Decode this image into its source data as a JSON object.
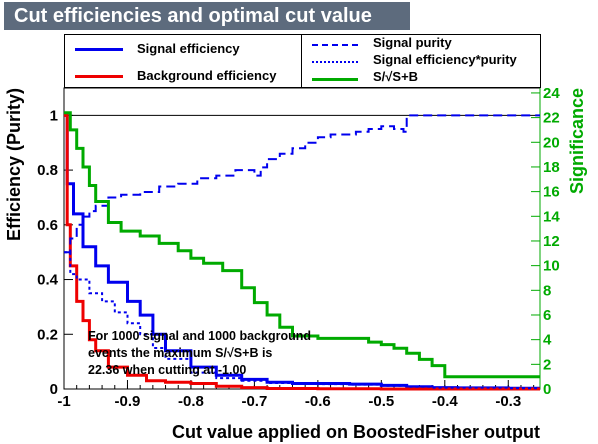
{
  "title": "Cut efficiencies and optimal cut value",
  "legend": {
    "left": [
      {
        "label": "Signal efficiency",
        "color": "#0000ee",
        "style": "solid"
      },
      {
        "label": "Background efficiency",
        "color": "#ee0000",
        "style": "solid"
      }
    ],
    "right": [
      {
        "label": "Signal purity",
        "color": "#0000ee",
        "style": "dashed"
      },
      {
        "label": "Signal efficiency*purity",
        "color": "#0000ee",
        "style": "dotted"
      },
      {
        "label": "S/√S+B",
        "color": "#00aa00",
        "style": "solid"
      }
    ]
  },
  "annotation": {
    "line1": "For 1000 signal and 1000 background",
    "line2": "events the maximum S/√S+B is",
    "line3": "22.36 when cutting at -1.00"
  },
  "chart_data": {
    "type": "line",
    "xlabel": "Cut value applied on BoostedFisher output",
    "ylabel": "Efficiency (Purity)",
    "y2label": "Significance",
    "xlim": [
      -1.0,
      -0.25
    ],
    "ylim": [
      0,
      1.1
    ],
    "y2lim": [
      0,
      24.4
    ],
    "xticks": [
      "-1",
      "-0.9",
      "-0.8",
      "-0.7",
      "-0.6",
      "-0.5",
      "-0.4",
      "-0.3"
    ],
    "xtick_values": [
      -1.0,
      -0.9,
      -0.8,
      -0.7,
      -0.6,
      -0.5,
      -0.4,
      -0.3
    ],
    "yticks": [
      "0",
      "0.2",
      "0.4",
      "0.6",
      "0.8",
      "1"
    ],
    "ytick_values": [
      0,
      0.2,
      0.4,
      0.6,
      0.8,
      1.0
    ],
    "y2ticks": [
      "0",
      "2",
      "4",
      "6",
      "8",
      "10",
      "12",
      "14",
      "16",
      "18",
      "20",
      "22",
      "24"
    ],
    "y2tick_values": [
      0,
      2,
      4,
      6,
      8,
      10,
      12,
      14,
      16,
      18,
      20,
      22,
      24
    ],
    "reference_line_y": 1.0,
    "series": [
      {
        "name": "Signal efficiency",
        "color": "#0000ee",
        "style": "solid",
        "axis": "left",
        "x": [
          -1.0,
          -0.995,
          -0.985,
          -0.97,
          -0.95,
          -0.93,
          -0.9,
          -0.88,
          -0.86,
          -0.84,
          -0.8,
          -0.76,
          -0.72,
          -0.68,
          -0.64,
          -0.6,
          -0.55,
          -0.5,
          -0.46,
          -0.42,
          -0.38,
          -0.3,
          -0.25
        ],
        "y": [
          1.0,
          0.75,
          0.64,
          0.52,
          0.45,
          0.39,
          0.32,
          0.27,
          0.2,
          0.14,
          0.08,
          0.05,
          0.035,
          0.025,
          0.02,
          0.02,
          0.018,
          0.013,
          0.008,
          0.005,
          0.004,
          0.003,
          0.003
        ]
      },
      {
        "name": "Background efficiency",
        "color": "#ee0000",
        "style": "solid",
        "axis": "left",
        "x": [
          -1.0,
          -0.995,
          -0.99,
          -0.98,
          -0.97,
          -0.96,
          -0.95,
          -0.93,
          -0.9,
          -0.87,
          -0.84,
          -0.8,
          -0.76,
          -0.72,
          -0.68,
          -0.6,
          -0.5,
          -0.4,
          -0.25
        ],
        "y": [
          1.0,
          0.6,
          0.45,
          0.32,
          0.25,
          0.18,
          0.14,
          0.08,
          0.05,
          0.03,
          0.025,
          0.02,
          0.01,
          0.005,
          0.002,
          0.001,
          0.0,
          0.0,
          0.0
        ]
      },
      {
        "name": "Signal purity",
        "color": "#0000ee",
        "style": "dashed",
        "axis": "left",
        "x": [
          -1.0,
          -0.99,
          -0.98,
          -0.97,
          -0.96,
          -0.95,
          -0.93,
          -0.91,
          -0.88,
          -0.85,
          -0.82,
          -0.79,
          -0.76,
          -0.73,
          -0.7,
          -0.69,
          -0.68,
          -0.66,
          -0.64,
          -0.62,
          -0.6,
          -0.58,
          -0.56,
          -0.54,
          -0.52,
          -0.5,
          -0.48,
          -0.465,
          -0.46,
          -0.4,
          -0.3,
          -0.25
        ],
        "y": [
          0.5,
          0.55,
          0.6,
          0.63,
          0.65,
          0.67,
          0.7,
          0.71,
          0.72,
          0.74,
          0.75,
          0.77,
          0.78,
          0.8,
          0.78,
          0.81,
          0.84,
          0.86,
          0.88,
          0.9,
          0.92,
          0.93,
          0.93,
          0.94,
          0.95,
          0.96,
          0.95,
          0.94,
          1.0,
          1.0,
          1.0,
          1.0
        ]
      },
      {
        "name": "Signal efficiency*purity",
        "color": "#0000ee",
        "style": "dotted",
        "axis": "left",
        "x": [
          -1.0,
          -0.99,
          -0.98,
          -0.96,
          -0.94,
          -0.92,
          -0.9,
          -0.88,
          -0.86,
          -0.84,
          -0.8,
          -0.76,
          -0.72,
          -0.68,
          -0.64,
          -0.6,
          -0.55,
          -0.5,
          -0.46,
          -0.42,
          -0.3,
          -0.25
        ],
        "y": [
          0.5,
          0.42,
          0.4,
          0.35,
          0.32,
          0.28,
          0.24,
          0.2,
          0.15,
          0.11,
          0.06,
          0.04,
          0.03,
          0.022,
          0.019,
          0.018,
          0.016,
          0.012,
          0.008,
          0.005,
          0.003,
          0.003
        ]
      },
      {
        "name": "S/√S+B",
        "color": "#00aa00",
        "style": "solid",
        "axis": "right",
        "x": [
          -1.0,
          -0.99,
          -0.98,
          -0.97,
          -0.96,
          -0.95,
          -0.93,
          -0.91,
          -0.88,
          -0.85,
          -0.82,
          -0.8,
          -0.78,
          -0.75,
          -0.72,
          -0.7,
          -0.68,
          -0.66,
          -0.64,
          -0.6,
          -0.55,
          -0.52,
          -0.5,
          -0.48,
          -0.46,
          -0.44,
          -0.42,
          -0.4,
          -0.35,
          -0.3,
          -0.25
        ],
        "y": [
          22.4,
          21.0,
          19.5,
          18.0,
          16.5,
          15.2,
          13.5,
          12.8,
          12.4,
          11.8,
          11.2,
          10.6,
          10.2,
          9.6,
          8.2,
          7.0,
          6.0,
          5.0,
          4.3,
          4.1,
          4.1,
          3.8,
          3.6,
          3.3,
          2.9,
          2.4,
          1.9,
          1.0,
          1.0,
          1.0,
          1.0
        ]
      }
    ]
  }
}
